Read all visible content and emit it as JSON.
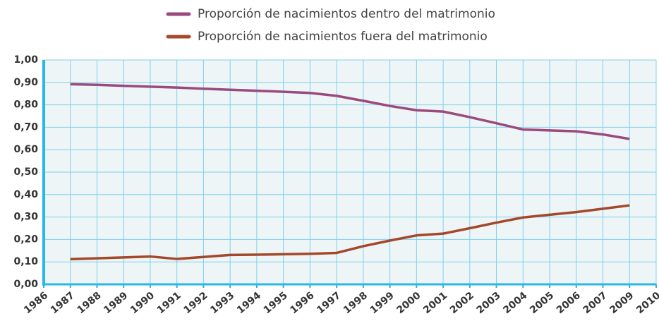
{
  "chart_data": {
    "type": "line",
    "categories": [
      "1986",
      "1987",
      "1988",
      "1989",
      "1990",
      "1991",
      "1992",
      "1993",
      "1994",
      "1995",
      "1996",
      "1997",
      "1998",
      "1999",
      "2000",
      "2001",
      "2002",
      "2003",
      "2004",
      "2005",
      "2006",
      "2007",
      "2009",
      "2010"
    ],
    "series": [
      {
        "name": "Proporción de nacimientos dentro del matrimonio",
        "color": "#9b4a7d",
        "values": [
          null,
          0.892,
          0.889,
          0.885,
          0.881,
          0.877,
          0.872,
          0.867,
          0.863,
          0.858,
          0.853,
          0.84,
          0.818,
          0.795,
          0.776,
          0.77,
          0.745,
          0.718,
          0.69,
          0.686,
          0.682,
          0.668,
          0.648,
          null
        ]
      },
      {
        "name": "Proporción de nacimientos fuera del matrimonio",
        "color": "#a3482a",
        "values": [
          null,
          0.112,
          0.116,
          0.12,
          0.124,
          0.113,
          0.122,
          0.131,
          0.132,
          0.134,
          0.136,
          0.14,
          0.17,
          0.195,
          0.218,
          0.226,
          0.25,
          0.275,
          0.298,
          0.31,
          0.322,
          0.337,
          0.352,
          null
        ]
      }
    ],
    "ylim": [
      0,
      1
    ],
    "yticks": [
      {
        "value": 0,
        "label": "0,00"
      },
      {
        "value": 0.1,
        "label": "0,10"
      },
      {
        "value": 0.2,
        "label": "0,20"
      },
      {
        "value": 0.3,
        "label": "0,30"
      },
      {
        "value": 0.4,
        "label": "0,40"
      },
      {
        "value": 0.5,
        "label": "0,50"
      },
      {
        "value": 0.6,
        "label": "0,60"
      },
      {
        "value": 0.7,
        "label": "0,70"
      },
      {
        "value": 0.8,
        "label": "0,80"
      },
      {
        "value": 0.9,
        "label": "0,90"
      },
      {
        "value": 1,
        "label": "1,00"
      }
    ],
    "grid": true
  }
}
